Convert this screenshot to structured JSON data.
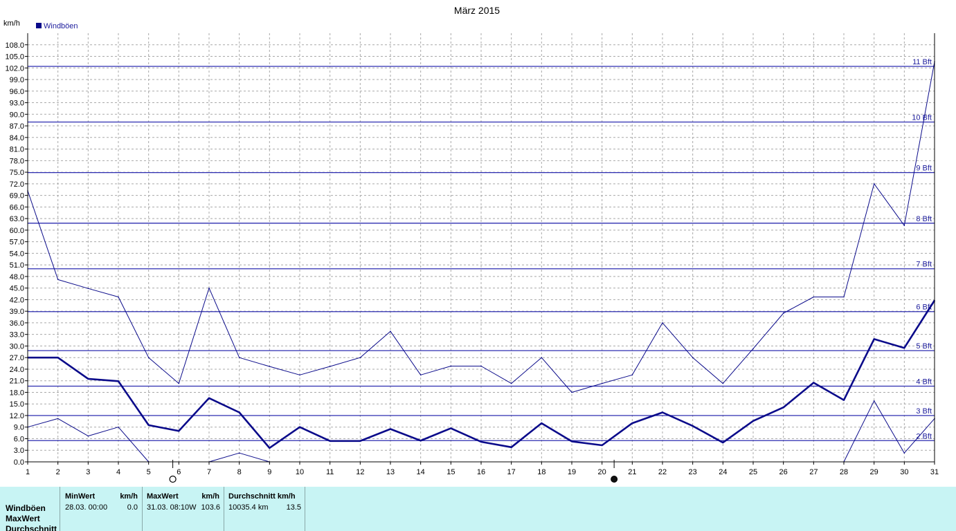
{
  "chart_data": {
    "type": "line",
    "title": "März 2015",
    "ylabel": "km/h",
    "xlabel": "",
    "legend": {
      "label": "Windböen",
      "position": "top-left"
    },
    "grid": true,
    "xlim": [
      1,
      31
    ],
    "ylim": [
      0,
      111
    ],
    "x_ticks": [
      "1",
      "2",
      "3",
      "4",
      "5",
      "6",
      "7",
      "8",
      "9",
      "10",
      "11",
      "12",
      "13",
      "14",
      "15",
      "16",
      "17",
      "18",
      "19",
      "20",
      "21",
      "22",
      "23",
      "24",
      "25",
      "26",
      "27",
      "28",
      "29",
      "30",
      "31"
    ],
    "y_ticks": [
      "0.0",
      "3.0",
      "6.0",
      "9.0",
      "12.0",
      "15.0",
      "18.0",
      "21.0",
      "24.0",
      "27.0",
      "30.0",
      "33.0",
      "36.0",
      "39.0",
      "42.0",
      "45.0",
      "48.0",
      "51.0",
      "54.0",
      "57.0",
      "60.0",
      "63.0",
      "66.0",
      "69.0",
      "72.0",
      "75.0",
      "78.0",
      "81.0",
      "84.0",
      "87.0",
      "90.0",
      "93.0",
      "96.0",
      "99.0",
      "102.0",
      "105.0",
      "108.0"
    ],
    "beaufort_lines": [
      {
        "label": "2 Bft",
        "value": 5.5
      },
      {
        "label": "3 Bft",
        "value": 12.0
      },
      {
        "label": "4 Bft",
        "value": 19.6
      },
      {
        "label": "5 Bft",
        "value": 28.8
      },
      {
        "label": "6 Bft",
        "value": 38.9
      },
      {
        "label": "7 Bft",
        "value": 50.0
      },
      {
        "label": "8 Bft",
        "value": 61.8
      },
      {
        "label": "9 Bft",
        "value": 74.9
      },
      {
        "label": "10 Bft",
        "value": 88.0
      },
      {
        "label": "11 Bft",
        "value": 102.4
      }
    ],
    "series": [
      {
        "role": "average",
        "weight": "bold",
        "x": [
          1,
          2,
          3,
          4,
          5,
          6,
          7,
          8,
          9,
          10,
          11,
          12,
          13,
          14,
          15,
          16,
          17,
          18,
          19,
          20,
          21,
          22,
          23,
          24,
          25,
          26,
          27,
          28,
          29,
          30,
          31
        ],
        "values": [
          27.0,
          27.0,
          21.5,
          20.9,
          9.5,
          8.0,
          16.5,
          12.8,
          3.6,
          9.0,
          5.4,
          5.4,
          8.5,
          5.5,
          8.7,
          5.2,
          3.8,
          10.0,
          5.3,
          4.3,
          10.0,
          12.8,
          9.3,
          5.0,
          10.6,
          14.1,
          20.5,
          16.0,
          31.8,
          29.5,
          41.8
        ]
      },
      {
        "role": "max",
        "weight": "thin",
        "x": [
          1,
          2,
          3,
          4,
          5,
          6,
          7,
          8,
          9,
          10,
          11,
          12,
          13,
          14,
          15,
          16,
          17,
          18,
          19,
          20,
          21,
          22,
          23,
          24,
          25,
          26,
          27,
          28,
          29,
          30,
          31
        ],
        "values": [
          70.2,
          47.2,
          44.9,
          42.7,
          27.0,
          20.3,
          45.0,
          27.0,
          24.7,
          22.5,
          24.7,
          27.0,
          33.8,
          22.5,
          24.8,
          24.8,
          20.3,
          27.0,
          18.0,
          20.3,
          22.5,
          36.0,
          27.0,
          20.3,
          29.3,
          38.5,
          42.7,
          42.7,
          72.0,
          61.2,
          103.6
        ]
      },
      {
        "role": "min",
        "weight": "thin",
        "x": [
          1,
          2,
          3,
          4,
          5,
          7,
          8,
          9,
          28,
          29,
          30,
          31
        ],
        "values": [
          9.0,
          11.2,
          6.7,
          9.0,
          0.0,
          0.0,
          2.3,
          0.0,
          0.0,
          15.8,
          2.3,
          11.2
        ]
      }
    ],
    "moon_phases": [
      {
        "day": 5.8,
        "phase": "full-moon"
      },
      {
        "day": 20.4,
        "phase": "new-moon"
      }
    ]
  },
  "stats": {
    "row_labels": [
      "Windböen",
      "MaxWert",
      "Durchschnitt"
    ],
    "columns": [
      {
        "header_left": "MinWert",
        "header_right": "km/h",
        "value_left": "28.03.  00:00",
        "value_right": "0.0"
      },
      {
        "header_left": "MaxWert",
        "header_right": "km/h",
        "value_left": "31.03.  08:10W",
        "value_right": "103.6"
      },
      {
        "header_left": "Durchschnitt km/h",
        "header_right": "",
        "value_left": "10035.4 km",
        "value_right": "13.5"
      }
    ]
  },
  "colors": {
    "series": "#0a0a8a",
    "beaufort": "#2c2cb0",
    "grid": "#a8a8a8",
    "panel": "#c8f4f4"
  }
}
